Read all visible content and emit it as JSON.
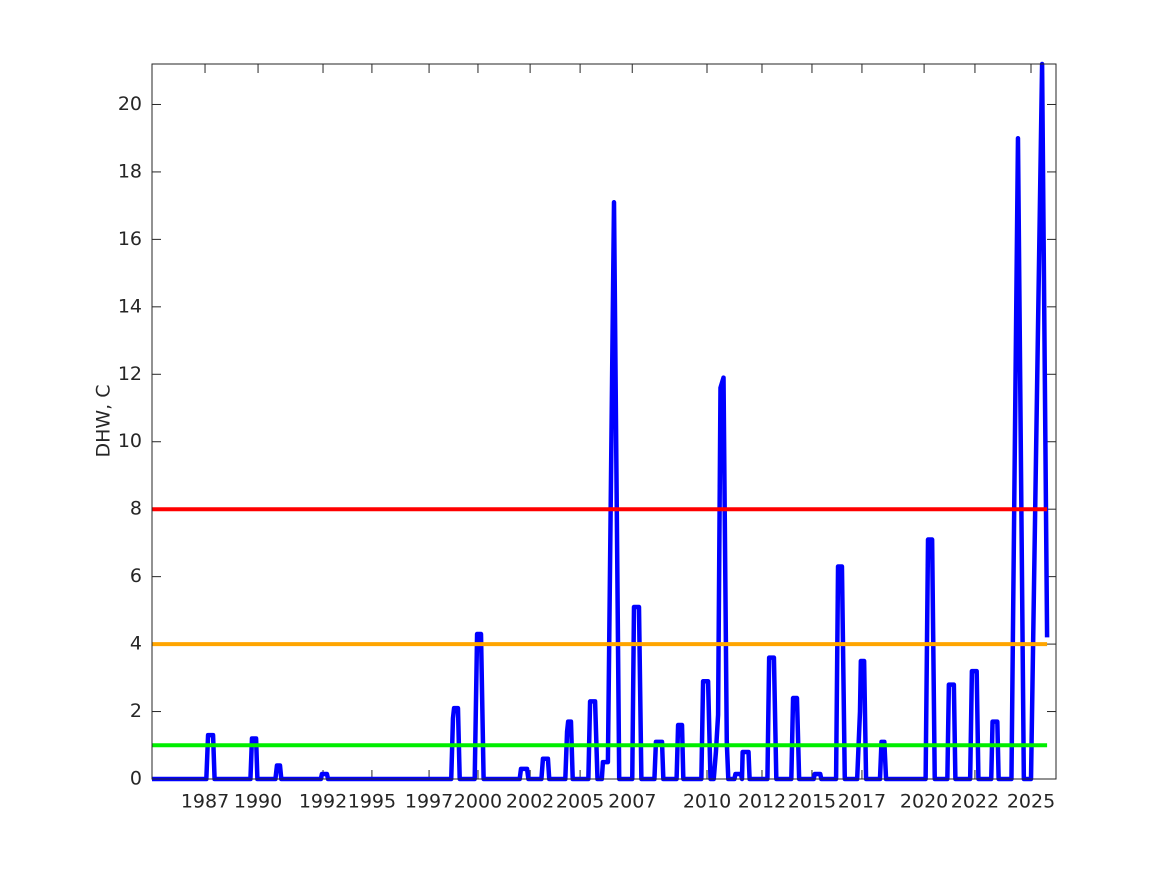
{
  "chart_data": {
    "type": "line",
    "ylabel": "DHW, C",
    "x": [
      1984.6,
      1987.1,
      1987.18,
      1987.41,
      1987.48,
      1989.13,
      1989.2,
      1989.39,
      1989.45,
      1990.28,
      1990.35,
      1990.49,
      1990.55,
      1992.37,
      1992.42,
      1992.65,
      1992.7,
      1998.37,
      1998.45,
      1998.5,
      1998.68,
      1998.76,
      1999.45,
      1999.56,
      1999.74,
      1999.86,
      2001.52,
      2001.58,
      2001.86,
      2001.92,
      2002.52,
      2002.59,
      2002.82,
      2002.88,
      2003.62,
      2003.7,
      2003.75,
      2003.88,
      2003.96,
      2004.68,
      2004.76,
      2004.99,
      2005.1,
      2005.3,
      2005.35,
      2005.58,
      2005.86,
      2006.1,
      2006.7,
      2006.78,
      2007.01,
      2007.12,
      2007.72,
      2007.79,
      2008.07,
      2008.13,
      2008.74,
      2008.81,
      2008.99,
      2009.05,
      2009.88,
      2009.96,
      2010.19,
      2010.3,
      2010.45,
      2010.55,
      2010.65,
      2010.76,
      2010.9,
      2011.05,
      2011.12,
      2011.4,
      2011.45,
      2011.7,
      2011.75,
      2011.78,
      2012.05,
      2012.1,
      2012.92,
      2013.0,
      2013.22,
      2013.33,
      2014.02,
      2014.1,
      2014.28,
      2014.38,
      2015.05,
      2015.1,
      2015.35,
      2015.4,
      2016.08,
      2016.17,
      2016.35,
      2016.48,
      2017.05,
      2017.18,
      2017.22,
      2017.37,
      2017.46,
      2018.1,
      2018.17,
      2018.3,
      2018.38,
      2020.2,
      2020.31,
      2020.5,
      2020.62,
      2021.2,
      2021.27,
      2021.5,
      2021.57,
      2022.25,
      2022.33,
      2022.55,
      2022.63,
      2023.22,
      2023.28,
      2023.5,
      2023.56,
      2024.15,
      2024.45,
      2024.72,
      2025.05,
      2025.56,
      2025.79
    ],
    "series": [
      {
        "color": "#0000ff",
        "values": [
          0,
          0,
          1.3,
          1.3,
          0,
          0,
          1.2,
          1.2,
          0,
          0,
          0.4,
          0.4,
          0,
          0,
          0.15,
          0.15,
          0,
          0,
          1.8,
          2.1,
          2.1,
          0,
          0,
          4.3,
          4.3,
          0,
          0,
          0.3,
          0.3,
          0,
          0,
          0.6,
          0.6,
          0,
          0,
          1.4,
          1.7,
          1.7,
          0,
          0,
          2.3,
          2.3,
          0,
          0,
          0.5,
          0.5,
          17.1,
          0,
          0,
          5.1,
          5.1,
          0,
          0,
          1.1,
          1.1,
          0,
          0,
          1.6,
          1.6,
          0,
          0,
          2.9,
          2.9,
          0,
          0,
          0.8,
          1.9,
          11.6,
          11.9,
          1.1,
          0,
          0,
          0.15,
          0.15,
          0,
          0.8,
          0.8,
          0,
          0,
          3.6,
          3.6,
          0,
          0,
          2.4,
          2.4,
          0,
          0,
          0.15,
          0.15,
          0,
          0,
          6.3,
          6.3,
          0,
          0,
          2.0,
          3.5,
          3.5,
          0,
          0,
          1.1,
          1.1,
          0,
          0,
          7.1,
          7.1,
          0,
          0,
          2.8,
          2.8,
          0,
          0,
          3.2,
          3.2,
          0,
          0,
          1.7,
          1.7,
          0,
          0,
          19.0,
          0,
          0,
          21.2,
          4.2
        ]
      }
    ],
    "thresholds": [
      {
        "value": 1,
        "color": "#00ee00"
      },
      {
        "value": 4,
        "color": "#ffa500"
      },
      {
        "value": 8,
        "color": "#ff0000"
      }
    ],
    "xlim": [
      1984.6,
      2026.2
    ],
    "ylim": [
      0,
      21.2
    ],
    "xticks": [
      {
        "value": 1987.04,
        "label": "1987"
      },
      {
        "value": 1989.48,
        "label": "1990"
      },
      {
        "value": 1992.47,
        "label": "1992"
      },
      {
        "value": 1994.72,
        "label": "1995"
      },
      {
        "value": 1997.35,
        "label": "1997"
      },
      {
        "value": 1999.6,
        "label": "2000"
      },
      {
        "value": 2002.0,
        "label": "2002"
      },
      {
        "value": 2004.3,
        "label": "2005"
      },
      {
        "value": 2006.7,
        "label": "2007"
      },
      {
        "value": 2010.14,
        "label": "2010"
      },
      {
        "value": 2012.67,
        "label": "2012"
      },
      {
        "value": 2014.97,
        "label": "2015"
      },
      {
        "value": 2017.27,
        "label": "2017"
      },
      {
        "value": 2020.13,
        "label": "2020"
      },
      {
        "value": 2022.47,
        "label": "2022"
      },
      {
        "value": 2025.05,
        "label": "2025"
      }
    ],
    "yticks": [
      0,
      2,
      4,
      6,
      8,
      10,
      12,
      14,
      16,
      18,
      20
    ],
    "grid": false
  }
}
